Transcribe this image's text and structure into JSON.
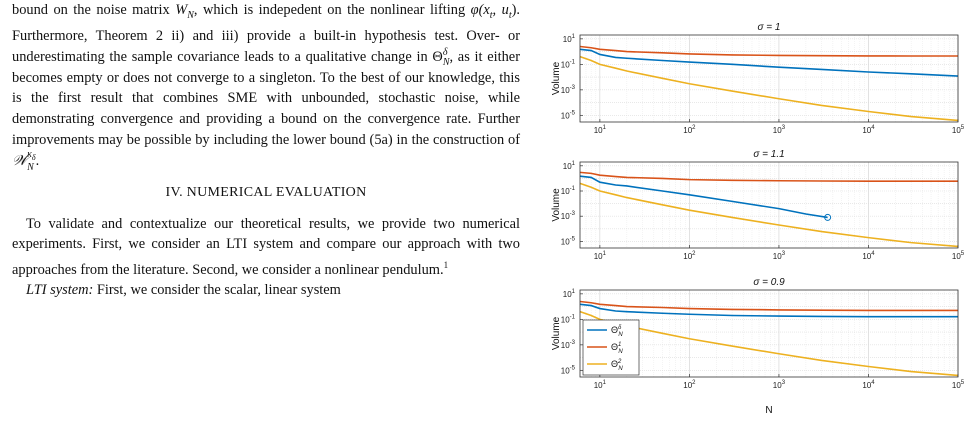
{
  "text": {
    "para1": {
      "s1": "bound on the noise matrix ",
      "w_sym": "W",
      "w_sub": "N",
      "s2": ", which is indepedent on the nonlinear lifting ",
      "phi": "φ(x",
      "phi_sub1": "t",
      "phi_mid": ", u",
      "phi_sub2": "t",
      "phi_end": ")",
      "s3": ". Furthermore, Theorem 2 ii) and iii) provide a built-in hypothesis test. Over- or underestimating the sample covariance leads to a qualitative change in ",
      "theta": "Θ",
      "theta_sup": "δ",
      "theta_sub": "N",
      "s4": ", as it either becomes empty or does not converge to a singleton. To the best of our knowledge, this is the first result that combines SME with unbounded, stochastic noise, while demonstrating convergence and providing a bound on the convergence rate. Further improvements may be possible by including the lower bound (5a) in the construction of ",
      "wset": "𝒲",
      "wset_sup": "κ",
      "wset_supsub": "δ",
      "wset_sub": "N",
      "s5": "."
    },
    "section_heading": "IV. NUMERICAL EVALUATION",
    "para2": "To validate and contextualize our theoretical results, we provide two numerical experiments. First, we consider an LTI system and compare our approach with two approaches from the literature. Second, we consider a nonlinear pendulum.",
    "footnote_mark": "1",
    "para3_lead": "LTI system:",
    "para3": " First, we consider the scalar, linear system"
  },
  "figure": {
    "colors": {
      "theta_N": "#0072BD",
      "theta_1": "#D95319",
      "theta_2": "#EDB120"
    },
    "x_axis_label": "N",
    "y_axis_label": "Volume",
    "x_tick_labels": [
      "10",
      "10",
      "10",
      "10",
      "10"
    ],
    "x_tick_exps": [
      "1",
      "2",
      "3",
      "4",
      "5"
    ],
    "y_tick_labels": [
      "10",
      "10",
      "10",
      "10"
    ],
    "y_tick_exps": [
      "1",
      "-1",
      "-3",
      "-5"
    ],
    "legend": {
      "placement": "bottom-left",
      "entries": [
        {
          "base": "Θ",
          "sup": "δ",
          "sub": "N"
        },
        {
          "base": "Θ",
          "sup": "1",
          "sub": "N"
        },
        {
          "base": "Θ",
          "sup": "2",
          "sub": "N"
        }
      ]
    }
  },
  "chart_data": [
    {
      "type": "line",
      "title": "σ = 1",
      "xscale": "log",
      "yscale": "log",
      "xlim": [
        6,
        100000
      ],
      "ylim": [
        3e-06,
        20
      ],
      "grid": true,
      "series": [
        {
          "x": [
            6,
            8,
            10,
            15,
            20,
            50,
            100,
            300,
            1000,
            3000,
            10000,
            30000,
            100000
          ],
          "y": [
            1.5,
            1.2,
            0.6,
            0.35,
            0.3,
            0.2,
            0.15,
            0.1,
            0.06,
            0.04,
            0.025,
            0.018,
            0.012
          ]
        },
        {
          "x": [
            6,
            8,
            10,
            15,
            20,
            50,
            100,
            300,
            1000,
            3000,
            10000,
            30000,
            100000
          ],
          "y": [
            2.5,
            2.0,
            1.5,
            1.2,
            1.0,
            0.8,
            0.65,
            0.55,
            0.5,
            0.48,
            0.46,
            0.45,
            0.45
          ]
        },
        {
          "x": [
            6,
            8,
            10,
            15,
            20,
            50,
            100,
            300,
            1000,
            3000,
            10000,
            30000,
            100000
          ],
          "y": [
            0.4,
            0.2,
            0.1,
            0.05,
            0.03,
            0.008,
            0.003,
            0.0008,
            0.0002,
            6e-05,
            2e-05,
            8e-06,
            4e-06
          ]
        }
      ]
    },
    {
      "type": "line",
      "title": "σ = 1.1",
      "xscale": "log",
      "yscale": "log",
      "xlim": [
        6,
        100000
      ],
      "ylim": [
        3e-06,
        20
      ],
      "grid": true,
      "series": [
        {
          "x": [
            6,
            8,
            10,
            15,
            20,
            50,
            100,
            300,
            1000,
            2000,
            3500
          ],
          "y": [
            1.5,
            1.2,
            0.5,
            0.3,
            0.25,
            0.1,
            0.05,
            0.015,
            0.004,
            0.0015,
            0.0008
          ]
        },
        {
          "x": [
            6,
            8,
            10,
            15,
            20,
            50,
            100,
            300,
            1000,
            3000,
            10000,
            30000,
            100000
          ],
          "y": [
            3.0,
            2.5,
            1.8,
            1.4,
            1.2,
            1.0,
            0.8,
            0.7,
            0.65,
            0.62,
            0.6,
            0.6,
            0.6
          ]
        },
        {
          "x": [
            6,
            8,
            10,
            15,
            20,
            50,
            100,
            300,
            1000,
            3000,
            10000,
            30000,
            100000
          ],
          "y": [
            0.4,
            0.2,
            0.1,
            0.05,
            0.03,
            0.008,
            0.003,
            0.0008,
            0.0002,
            6e-05,
            2e-05,
            8e-06,
            4e-06
          ]
        }
      ],
      "marker": {
        "x": 3500,
        "y": 0.0008
      }
    },
    {
      "type": "line",
      "title": "σ = 0.9",
      "xscale": "log",
      "yscale": "log",
      "xlim": [
        6,
        100000
      ],
      "ylim": [
        3e-06,
        20
      ],
      "grid": true,
      "series": [
        {
          "x": [
            6,
            8,
            10,
            15,
            20,
            50,
            100,
            300,
            1000,
            3000,
            10000,
            30000,
            100000
          ],
          "y": [
            1.5,
            1.2,
            0.7,
            0.45,
            0.4,
            0.3,
            0.25,
            0.2,
            0.18,
            0.17,
            0.16,
            0.16,
            0.16
          ]
        },
        {
          "x": [
            6,
            8,
            10,
            15,
            20,
            50,
            100,
            300,
            1000,
            3000,
            10000,
            30000,
            100000
          ],
          "y": [
            2.5,
            2.0,
            1.5,
            1.2,
            1.0,
            0.85,
            0.7,
            0.6,
            0.55,
            0.52,
            0.5,
            0.5,
            0.5
          ]
        },
        {
          "x": [
            6,
            8,
            10,
            15,
            20,
            50,
            100,
            300,
            1000,
            3000,
            10000,
            30000,
            100000
          ],
          "y": [
            0.4,
            0.2,
            0.1,
            0.05,
            0.03,
            0.008,
            0.003,
            0.0008,
            0.0002,
            6e-05,
            2e-05,
            8e-06,
            4e-06
          ]
        }
      ]
    }
  ]
}
